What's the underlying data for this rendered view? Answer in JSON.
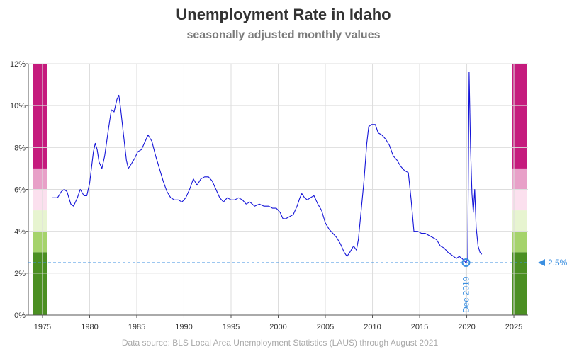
{
  "chart_data": {
    "type": "line",
    "title": "Unemployment Rate in Idaho",
    "subtitle": "seasonally adjusted monthly values",
    "source": "Data source: BLS Local Area Unemployment Statistics (LAUS) through August 2021",
    "xlim": [
      1973.5,
      2026.5
    ],
    "ylim": [
      0,
      12
    ],
    "x_ticks": [
      1975,
      1980,
      1985,
      1990,
      1995,
      2000,
      2005,
      2010,
      2015,
      2020,
      2025
    ],
    "y_ticks": [
      {
        "value": 0,
        "label": "0%"
      },
      {
        "value": 2,
        "label": "2%"
      },
      {
        "value": 4,
        "label": "4%"
      },
      {
        "value": 6,
        "label": "6%"
      },
      {
        "value": 8,
        "label": "8%"
      },
      {
        "value": 10,
        "label": "10%"
      },
      {
        "value": 12,
        "label": "12%"
      }
    ],
    "grid": true,
    "line_color": "#1515d8",
    "reference": {
      "value": 2.5,
      "label": "2.5%",
      "color": "#3b8fe0",
      "marker_x": 2019.92,
      "marker_label": "Dec 2019"
    },
    "bands": [
      {
        "from": 0,
        "to": 3,
        "color": "#4b8f22"
      },
      {
        "from": 3,
        "to": 4,
        "color": "#a5d36b"
      },
      {
        "from": 4,
        "to": 5,
        "color": "#e7f4d0"
      },
      {
        "from": 5,
        "to": 6,
        "color": "#fbe0ee"
      },
      {
        "from": 6,
        "to": 7,
        "color": "#e8a0c8"
      },
      {
        "from": 7,
        "to": 12,
        "color": "#c51b7d"
      }
    ],
    "series": [
      {
        "values": [
          [
            1976.0,
            5.6
          ],
          [
            1976.6,
            5.6
          ],
          [
            1977.0,
            5.9
          ],
          [
            1977.3,
            6.0
          ],
          [
            1977.6,
            5.9
          ],
          [
            1978.0,
            5.3
          ],
          [
            1978.3,
            5.2
          ],
          [
            1978.7,
            5.6
          ],
          [
            1979.0,
            6.0
          ],
          [
            1979.4,
            5.7
          ],
          [
            1979.7,
            5.7
          ],
          [
            1980.0,
            6.3
          ],
          [
            1980.4,
            7.8
          ],
          [
            1980.6,
            8.2
          ],
          [
            1980.8,
            7.9
          ],
          [
            1981.0,
            7.3
          ],
          [
            1981.3,
            7.0
          ],
          [
            1981.6,
            7.6
          ],
          [
            1982.0,
            8.9
          ],
          [
            1982.3,
            9.8
          ],
          [
            1982.6,
            9.7
          ],
          [
            1982.9,
            10.3
          ],
          [
            1983.1,
            10.5
          ],
          [
            1983.3,
            9.8
          ],
          [
            1983.6,
            8.6
          ],
          [
            1983.9,
            7.4
          ],
          [
            1984.1,
            7.0
          ],
          [
            1984.4,
            7.2
          ],
          [
            1984.8,
            7.5
          ],
          [
            1985.1,
            7.8
          ],
          [
            1985.5,
            7.9
          ],
          [
            1985.9,
            8.3
          ],
          [
            1986.2,
            8.6
          ],
          [
            1986.6,
            8.3
          ],
          [
            1987.0,
            7.6
          ],
          [
            1987.4,
            7.0
          ],
          [
            1987.8,
            6.4
          ],
          [
            1988.2,
            5.9
          ],
          [
            1988.6,
            5.6
          ],
          [
            1989.0,
            5.5
          ],
          [
            1989.4,
            5.5
          ],
          [
            1989.8,
            5.4
          ],
          [
            1990.2,
            5.6
          ],
          [
            1990.6,
            6.0
          ],
          [
            1991.0,
            6.5
          ],
          [
            1991.4,
            6.2
          ],
          [
            1991.8,
            6.5
          ],
          [
            1992.2,
            6.6
          ],
          [
            1992.6,
            6.6
          ],
          [
            1993.0,
            6.4
          ],
          [
            1993.4,
            6.0
          ],
          [
            1993.8,
            5.6
          ],
          [
            1994.2,
            5.4
          ],
          [
            1994.6,
            5.6
          ],
          [
            1995.0,
            5.5
          ],
          [
            1995.4,
            5.5
          ],
          [
            1995.8,
            5.6
          ],
          [
            1996.2,
            5.5
          ],
          [
            1996.6,
            5.3
          ],
          [
            1997.0,
            5.4
          ],
          [
            1997.5,
            5.2
          ],
          [
            1998.0,
            5.3
          ],
          [
            1998.5,
            5.2
          ],
          [
            1999.0,
            5.2
          ],
          [
            1999.4,
            5.1
          ],
          [
            1999.8,
            5.1
          ],
          [
            2000.2,
            4.9
          ],
          [
            2000.5,
            4.6
          ],
          [
            2000.8,
            4.6
          ],
          [
            2001.2,
            4.7
          ],
          [
            2001.6,
            4.8
          ],
          [
            2002.0,
            5.2
          ],
          [
            2002.3,
            5.6
          ],
          [
            2002.5,
            5.8
          ],
          [
            2002.8,
            5.6
          ],
          [
            2003.1,
            5.5
          ],
          [
            2003.4,
            5.6
          ],
          [
            2003.8,
            5.7
          ],
          [
            2004.2,
            5.3
          ],
          [
            2004.6,
            5.0
          ],
          [
            2005.0,
            4.4
          ],
          [
            2005.4,
            4.1
          ],
          [
            2005.8,
            3.9
          ],
          [
            2006.2,
            3.7
          ],
          [
            2006.6,
            3.4
          ],
          [
            2007.0,
            3.0
          ],
          [
            2007.3,
            2.8
          ],
          [
            2007.6,
            3.0
          ],
          [
            2008.0,
            3.3
          ],
          [
            2008.3,
            3.1
          ],
          [
            2008.5,
            3.6
          ],
          [
            2008.8,
            5.0
          ],
          [
            2009.1,
            6.4
          ],
          [
            2009.4,
            8.2
          ],
          [
            2009.6,
            9.0
          ],
          [
            2009.9,
            9.1
          ],
          [
            2010.3,
            9.1
          ],
          [
            2010.6,
            8.7
          ],
          [
            2011.0,
            8.6
          ],
          [
            2011.4,
            8.4
          ],
          [
            2011.8,
            8.1
          ],
          [
            2012.2,
            7.6
          ],
          [
            2012.6,
            7.4
          ],
          [
            2013.0,
            7.1
          ],
          [
            2013.4,
            6.9
          ],
          [
            2013.8,
            6.8
          ],
          [
            2014.1,
            5.5
          ],
          [
            2014.4,
            4.0
          ],
          [
            2014.8,
            4.0
          ],
          [
            2015.2,
            3.9
          ],
          [
            2015.6,
            3.9
          ],
          [
            2016.0,
            3.8
          ],
          [
            2016.4,
            3.7
          ],
          [
            2016.8,
            3.6
          ],
          [
            2017.2,
            3.3
          ],
          [
            2017.6,
            3.2
          ],
          [
            2018.0,
            3.0
          ],
          [
            2018.3,
            2.9
          ],
          [
            2018.6,
            2.8
          ],
          [
            2018.9,
            2.7
          ],
          [
            2019.2,
            2.8
          ],
          [
            2019.5,
            2.7
          ],
          [
            2019.92,
            2.5
          ],
          [
            2020.1,
            2.7
          ],
          [
            2020.25,
            11.6
          ],
          [
            2020.4,
            8.0
          ],
          [
            2020.55,
            5.8
          ],
          [
            2020.7,
            4.9
          ],
          [
            2020.85,
            6.0
          ],
          [
            2021.0,
            4.2
          ],
          [
            2021.2,
            3.3
          ],
          [
            2021.4,
            3.0
          ],
          [
            2021.6,
            2.9
          ]
        ]
      }
    ]
  }
}
